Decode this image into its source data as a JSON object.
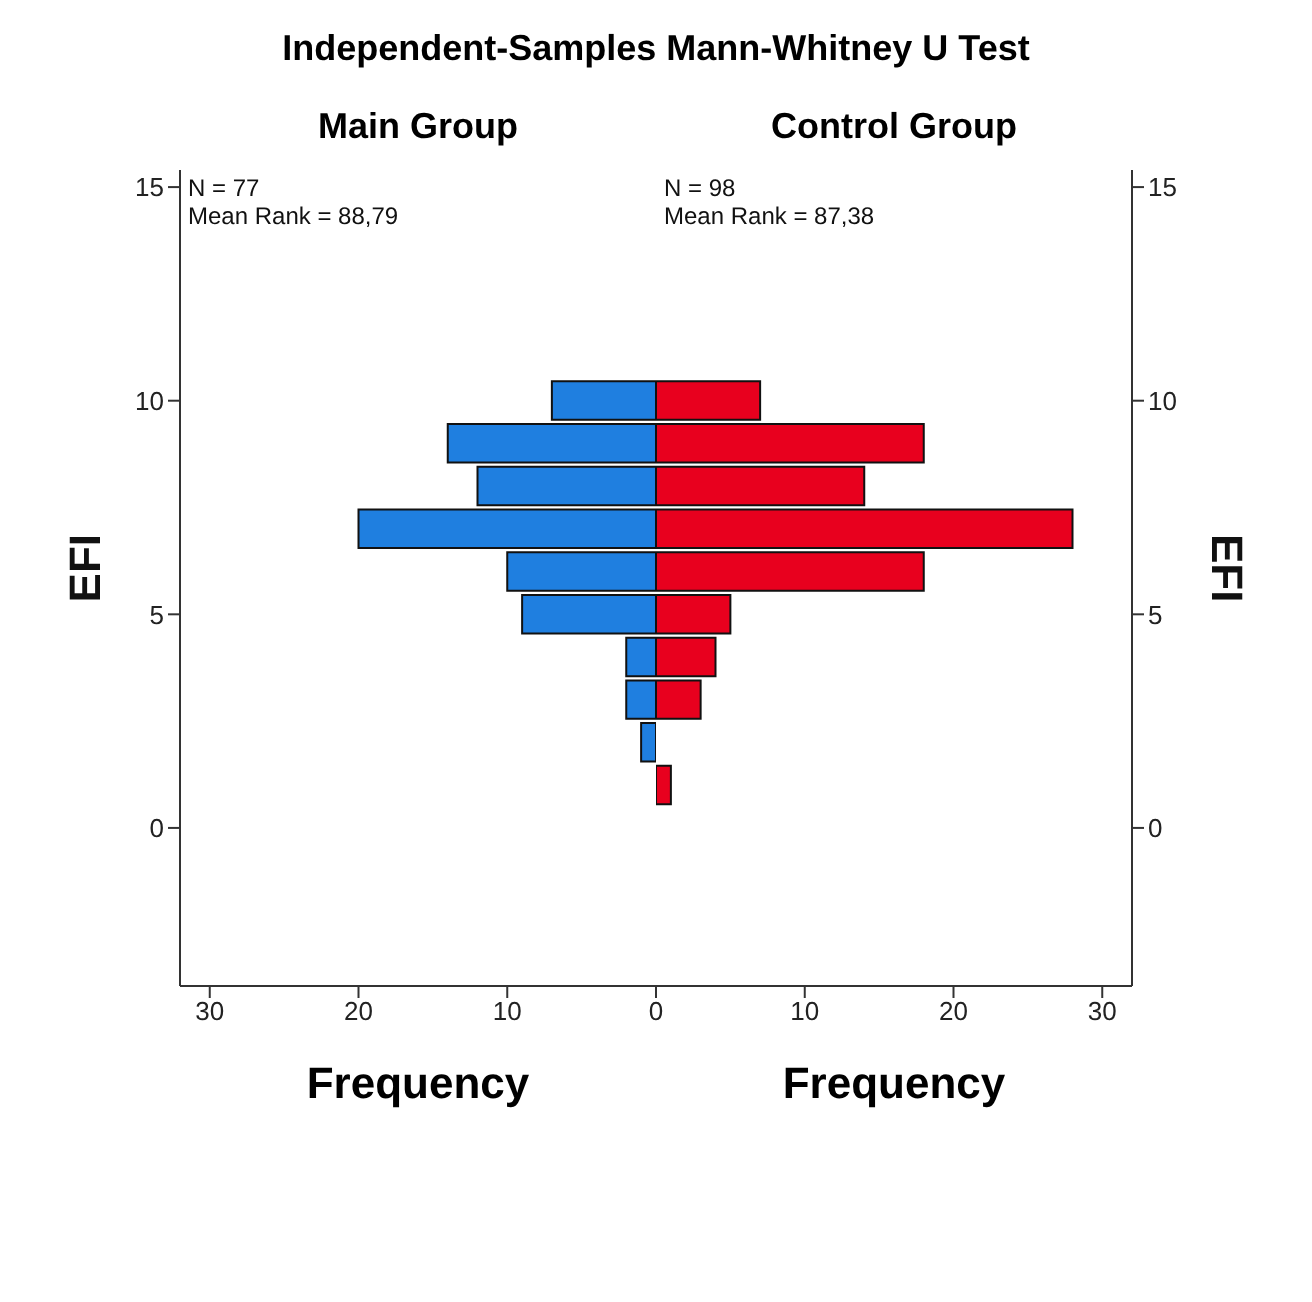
{
  "chart_data": [
    {
      "type": "histogram",
      "title": "Independent-Samples Mann-Whitney U Test",
      "subtitle": "Main Group",
      "orientation": "horizontal",
      "bins": [
        0.5,
        1.5,
        2.5,
        3.5,
        4.5,
        5.5,
        6.5,
        7.5,
        8.5,
        9.5,
        10.5
      ],
      "values": [
        0,
        1,
        2,
        2,
        9,
        10,
        20,
        12,
        14,
        7
      ],
      "color": "#1f7fe0",
      "xlim": [
        32,
        0
      ],
      "xticks": [
        0,
        10,
        20,
        30
      ],
      "ylim": [
        -3.7,
        15.4
      ],
      "yticks": [
        0,
        5,
        10,
        15
      ],
      "xlabel": "Frequency",
      "ylabel": "EFI",
      "annotations": [
        "N = 77",
        "Mean Rank = 88,79"
      ],
      "grid": false,
      "legend": false
    },
    {
      "type": "histogram",
      "subtitle": "Control Group",
      "orientation": "horizontal",
      "bins": [
        0.5,
        1.5,
        2.5,
        3.5,
        4.5,
        5.5,
        6.5,
        7.5,
        8.5,
        9.5,
        10.5
      ],
      "values": [
        1,
        0,
        3,
        4,
        5,
        18,
        28,
        14,
        18,
        7
      ],
      "color": "#e8001e",
      "xlim": [
        0,
        32
      ],
      "xticks": [
        10,
        20,
        30
      ],
      "ylim": [
        -3.7,
        15.4
      ],
      "yticks": [
        0,
        5,
        10,
        15
      ],
      "xlabel": "Frequency",
      "ylabel": "EFI",
      "annotations": [
        "N = 98",
        "Mean Rank = 87,38"
      ],
      "grid": false,
      "legend": false
    }
  ]
}
